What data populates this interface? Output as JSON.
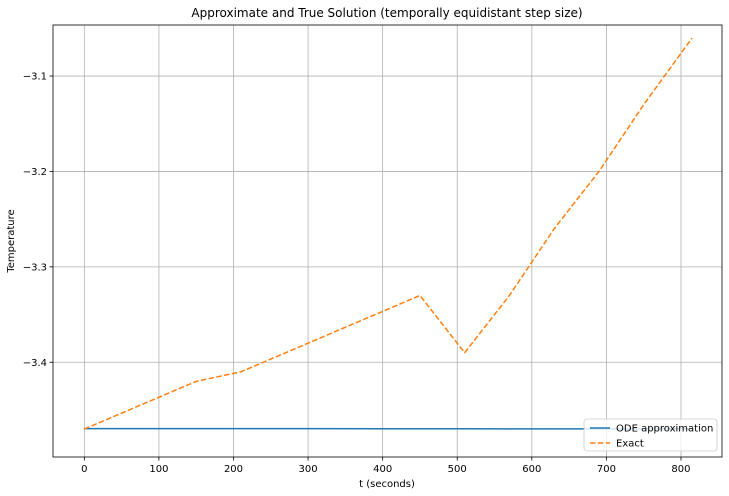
{
  "chart_data": {
    "type": "line",
    "title": "Approximate and True Solution (temporally equidistant step size)",
    "xlabel": "t (seconds)",
    "ylabel": "Temperature",
    "xlim": [
      -42,
      855
    ],
    "ylim": [
      -3.4993,
      -3.0465
    ],
    "xticks": [
      0,
      100,
      200,
      300,
      400,
      500,
      600,
      700,
      800
    ],
    "yticks": [
      -3.4,
      -3.3,
      -3.2,
      -3.1
    ],
    "xtick_labels": [
      "0",
      "100",
      "200",
      "300",
      "400",
      "500",
      "600",
      "700",
      "800"
    ],
    "ytick_labels": [
      "−3.4",
      "−3.3",
      "−3.2",
      "−3.1"
    ],
    "grid": true,
    "legend_position": "bottom-right",
    "series": [
      {
        "name": "ODE approximation",
        "color": "#1f77b4",
        "style": "solid",
        "x": [
          0,
          100,
          200,
          300,
          400,
          500,
          600,
          700,
          815
        ],
        "y": [
          -3.4695,
          -3.4695,
          -3.4696,
          -3.4696,
          -3.4697,
          -3.4697,
          -3.4698,
          -3.4698,
          -3.4698
        ]
      },
      {
        "name": "Exact",
        "color": "#ff7f0e",
        "style": "dashed",
        "x": [
          0,
          150,
          210,
          450,
          510,
          570,
          630,
          690,
          750,
          815
        ],
        "y": [
          -3.47,
          -3.42,
          -3.41,
          -3.33,
          -3.39,
          -3.33,
          -3.26,
          -3.2,
          -3.13,
          -3.06
        ]
      }
    ]
  }
}
